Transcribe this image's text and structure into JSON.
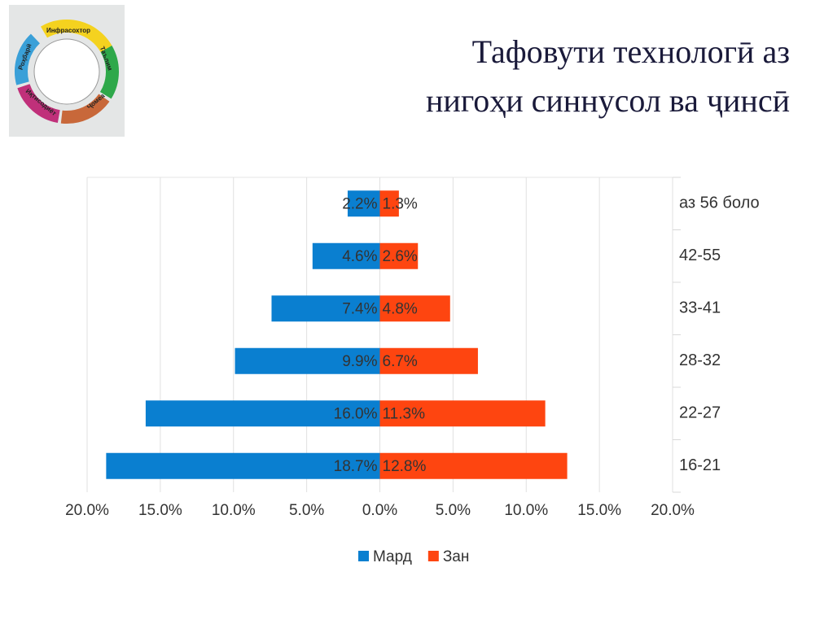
{
  "logo": {
    "texts": [
      "Инфрасохтор",
      "Таълим",
      "Ҷомеа",
      "Иқтисодиёт",
      "Роҳбарӣ"
    ]
  },
  "chart_data": {
    "type": "butterfly-bar",
    "title": [
      "Тафовути технологӣ аз",
      "нигоҳи синнусол ва ҷинсӣ"
    ],
    "categories": [
      "аз 56 боло",
      "42-55",
      "33-41",
      "28-32",
      "22-27",
      "16-21"
    ],
    "series": [
      {
        "name": "Мард",
        "color": "#0a7fd0",
        "values": [
          -2.2,
          -4.6,
          -7.4,
          -9.9,
          -16.0,
          -18.7
        ],
        "value_labels": [
          "2.2%",
          "4.6%",
          "7.4%",
          "9.9%",
          "16.0%",
          "18.7%"
        ]
      },
      {
        "name": "Зан",
        "color": "#fe4510",
        "values": [
          1.3,
          2.6,
          4.8,
          6.7,
          11.3,
          12.8
        ],
        "value_labels": [
          "1.3%",
          "2.6%",
          "4.8%",
          "6.7%",
          "11.3%",
          "12.8%"
        ]
      }
    ],
    "xlim": [
      -20,
      20
    ],
    "xticks": [
      {
        "value": -20,
        "label": "20.0%"
      },
      {
        "value": -15,
        "label": "15.0%"
      },
      {
        "value": -10,
        "label": "10.0%"
      },
      {
        "value": -5,
        "label": "5.0%"
      },
      {
        "value": 0,
        "label": "0.0%"
      },
      {
        "value": 5,
        "label": "5.0%"
      },
      {
        "value": 10,
        "label": "10.0%"
      },
      {
        "value": 15,
        "label": "15.0%"
      },
      {
        "value": 20,
        "label": "20.0%"
      }
    ],
    "grid": true,
    "legend": "bottom"
  }
}
